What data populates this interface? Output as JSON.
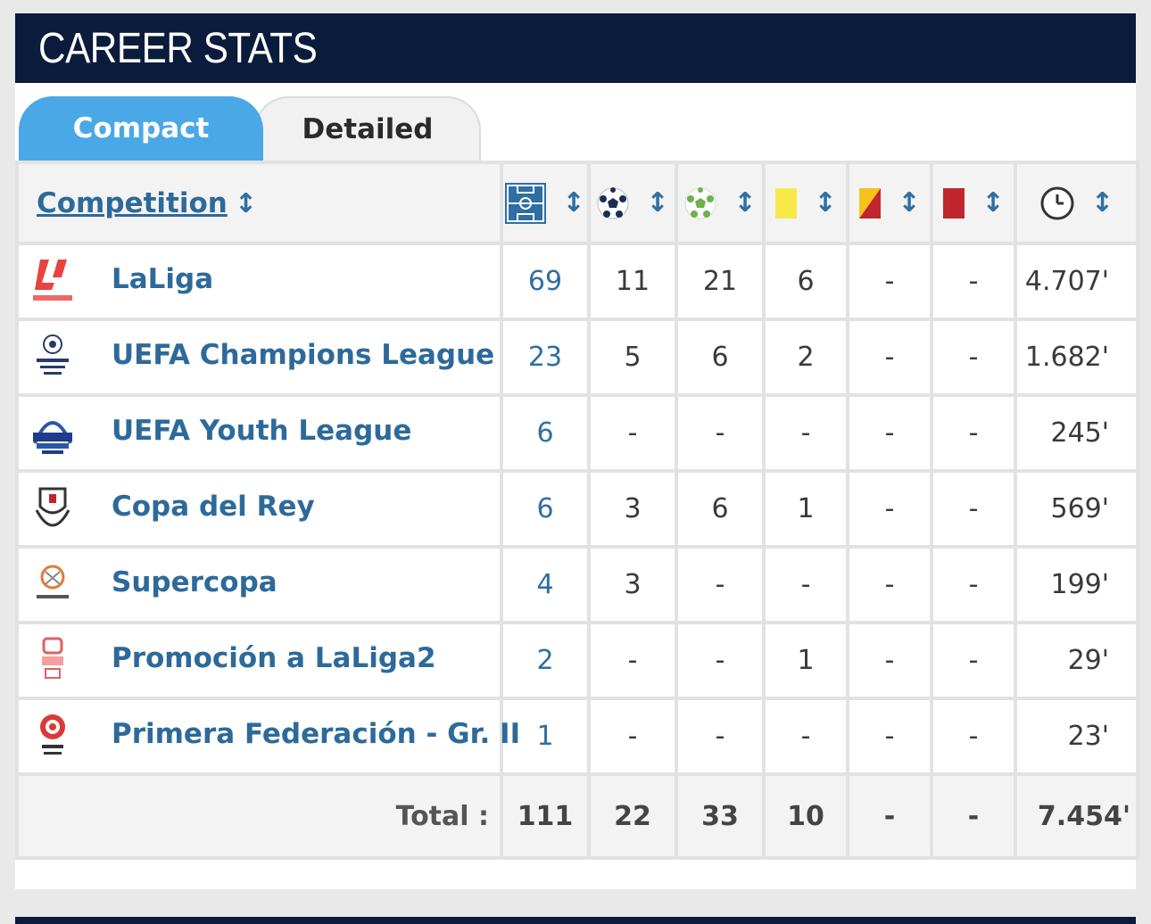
{
  "header": {
    "title": "CAREER STATS"
  },
  "tabs": [
    {
      "label": "Compact",
      "active": true
    },
    {
      "label": "Detailed",
      "active": false
    }
  ],
  "columns": {
    "competition": "Competition",
    "sort_glyph": "↕",
    "icons": [
      "pitch-icon",
      "ball-icon",
      "assist-ball-icon",
      "yellow-card-icon",
      "second-yellow-card-icon",
      "red-card-icon",
      "clock-icon"
    ]
  },
  "rows": [
    {
      "competition": "LaLiga",
      "logo": "laliga-logo",
      "apps": "69",
      "goals": "11",
      "assists": "21",
      "yellow": "6",
      "second_yellow": "-",
      "red": "-",
      "minutes": "4.707'"
    },
    {
      "competition": "UEFA Champions League",
      "logo": "ucl-logo",
      "apps": "23",
      "goals": "5",
      "assists": "6",
      "yellow": "2",
      "second_yellow": "-",
      "red": "-",
      "minutes": "1.682'"
    },
    {
      "competition": "UEFA Youth League",
      "logo": "uyl-logo",
      "apps": "6",
      "goals": "-",
      "assists": "-",
      "yellow": "-",
      "second_yellow": "-",
      "red": "-",
      "minutes": "245'"
    },
    {
      "competition": "Copa del Rey",
      "logo": "copa-logo",
      "apps": "6",
      "goals": "3",
      "assists": "6",
      "yellow": "1",
      "second_yellow": "-",
      "red": "-",
      "minutes": "569'"
    },
    {
      "competition": "Supercopa",
      "logo": "supercopa-logo",
      "apps": "4",
      "goals": "3",
      "assists": "-",
      "yellow": "-",
      "second_yellow": "-",
      "red": "-",
      "minutes": "199'"
    },
    {
      "competition": "Promoción a LaLiga2",
      "logo": "promocion-logo",
      "apps": "2",
      "goals": "-",
      "assists": "-",
      "yellow": "1",
      "second_yellow": "-",
      "red": "-",
      "minutes": "29'"
    },
    {
      "competition": "Primera Federación - Gr. II",
      "logo": "rfef-logo",
      "apps": "1",
      "goals": "-",
      "assists": "-",
      "yellow": "-",
      "second_yellow": "-",
      "red": "-",
      "minutes": "23'"
    }
  ],
  "total": {
    "label": "Total :",
    "apps": "111",
    "goals": "22",
    "assists": "33",
    "yellow": "10",
    "second_yellow": "-",
    "red": "-",
    "minutes": "7.454'"
  },
  "colors": {
    "header_bg": "#0b1b3c",
    "active_tab": "#4aa8e6",
    "link": "#2d6a9a",
    "yellow_card": "#f7e94a",
    "red_card": "#c0262d"
  }
}
